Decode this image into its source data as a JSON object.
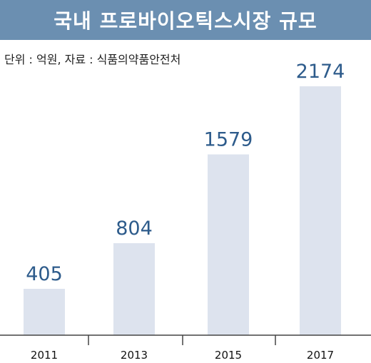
{
  "colors": {
    "title_bg": "#6b8fb1",
    "bar": "#dde3ee",
    "value_text": "#2d5b8b",
    "axis": "#444444"
  },
  "chart_data": {
    "type": "bar",
    "title": "국내 프로바이오틱스시장 규모",
    "note": "단위 : 억원, 자료 : 식품의약품안전처",
    "categories": [
      "2011",
      "2013",
      "2015",
      "2017"
    ],
    "values": [
      405,
      804,
      1579,
      2174
    ],
    "ylim": [
      0,
      2300
    ],
    "grid": false,
    "legend": "none",
    "data_labels": true
  }
}
